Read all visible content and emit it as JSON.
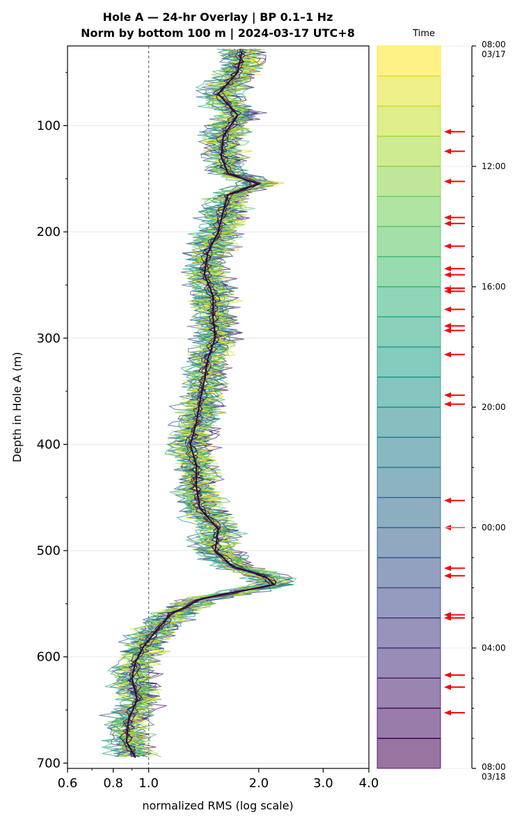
{
  "chart_data": {
    "type": "line",
    "title": [
      "Hole A — 24-hr Overlay  |  BP 0.1–1 Hz",
      "Norm by bottom 100 m  |  2024-03-17 UTC+8"
    ],
    "xlabel": "normalized RMS  (log scale)",
    "ylabel": "Depth in Hole A (m)",
    "xscale": "log",
    "xlim": [
      0.6,
      4.0
    ],
    "ylim": [
      705,
      25
    ],
    "x_ticks": [
      0.6,
      0.8,
      1.0,
      2.0,
      3.0,
      4.0
    ],
    "x_tick_labels": [
      "0.6",
      "0.8",
      "1.0",
      "2.0",
      "3.0",
      "4.0"
    ],
    "y_ticks": [
      100,
      200,
      300,
      400,
      500,
      600,
      700
    ],
    "y_tick_labels": [
      "100",
      "200",
      "300",
      "400",
      "500",
      "600",
      "700"
    ],
    "grid": "horizontal",
    "reference_line_x": 1.0,
    "n_profiles": 24,
    "mean_profile": {
      "depth": [
        30,
        50,
        70,
        90,
        110,
        130,
        145,
        155,
        165,
        180,
        200,
        220,
        240,
        260,
        280,
        300,
        320,
        340,
        360,
        380,
        400,
        420,
        440,
        460,
        480,
        500,
        515,
        525,
        532,
        545,
        560,
        575,
        590,
        605,
        620,
        640,
        660,
        680,
        695
      ],
      "rms": [
        1.8,
        1.75,
        1.55,
        1.75,
        1.6,
        1.58,
        1.65,
        2.0,
        1.65,
        1.6,
        1.55,
        1.45,
        1.42,
        1.5,
        1.5,
        1.52,
        1.45,
        1.42,
        1.38,
        1.35,
        1.3,
        1.35,
        1.35,
        1.38,
        1.55,
        1.52,
        1.7,
        2.1,
        2.2,
        1.4,
        1.15,
        1.05,
        0.97,
        0.92,
        0.9,
        0.93,
        0.88,
        0.87,
        0.92
      ]
    },
    "colorbar": {
      "title": "Time",
      "n_bins": 24,
      "colormap": "viridis",
      "ticks": [
        "08:00\n03/17",
        "12:00",
        "16:00",
        "20:00",
        "00:00",
        "04:00",
        "08:00\n03/18"
      ],
      "tick_hours": [
        0,
        4,
        8,
        12,
        16,
        20,
        24
      ],
      "event_arrow_hours": [
        2.85,
        3.5,
        4.5,
        5.7,
        5.9,
        6.65,
        7.4,
        7.6,
        8.05,
        8.15,
        8.75,
        9.3,
        9.45,
        10.25,
        11.6,
        11.9,
        15.1,
        16.0,
        17.35,
        17.6,
        18.9,
        19.0,
        20.9,
        21.3,
        22.15
      ],
      "arrow_color": "#ff0000"
    }
  }
}
